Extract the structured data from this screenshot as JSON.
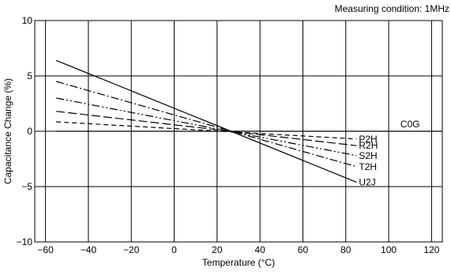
{
  "chart_data": {
    "type": "line",
    "annotation": "Measuring condition: 1MHz",
    "xlabel": "Temperature (°C)",
    "ylabel": "Capacitance Change (%)",
    "xlim": [
      -65,
      125
    ],
    "ylim": [
      -10,
      10
    ],
    "x_ticks": [
      -60,
      -40,
      -20,
      0,
      20,
      40,
      60,
      80,
      100,
      120
    ],
    "x_tick_labels": [
      "−60",
      "−40",
      "−20",
      "0",
      "20",
      "40",
      "60",
      "80",
      "100",
      "120"
    ],
    "y_ticks": [
      -10,
      -5,
      0,
      5,
      10
    ],
    "y_tick_labels": [
      "−10",
      "−5",
      "0",
      "5",
      "10"
    ],
    "grid": true,
    "series": [
      {
        "name": "C0G",
        "style": "solid",
        "x": [
          -55,
          125
        ],
        "y": [
          0,
          0
        ]
      },
      {
        "name": "P2H",
        "style": "dash",
        "x": [
          -55,
          85
        ],
        "y": [
          0.85,
          -0.7
        ]
      },
      {
        "name": "R2H",
        "style": "longdash",
        "x": [
          -55,
          85
        ],
        "y": [
          1.8,
          -1.3
        ]
      },
      {
        "name": "S2H",
        "style": "dashdotdot",
        "x": [
          -55,
          85
        ],
        "y": [
          3.0,
          -2.2
        ]
      },
      {
        "name": "T2H",
        "style": "dashdot",
        "x": [
          -55,
          85
        ],
        "y": [
          4.5,
          -3.2
        ]
      },
      {
        "name": "U2J",
        "style": "solid",
        "x": [
          -55,
          85
        ],
        "y": [
          6.4,
          -4.6
        ]
      }
    ]
  }
}
